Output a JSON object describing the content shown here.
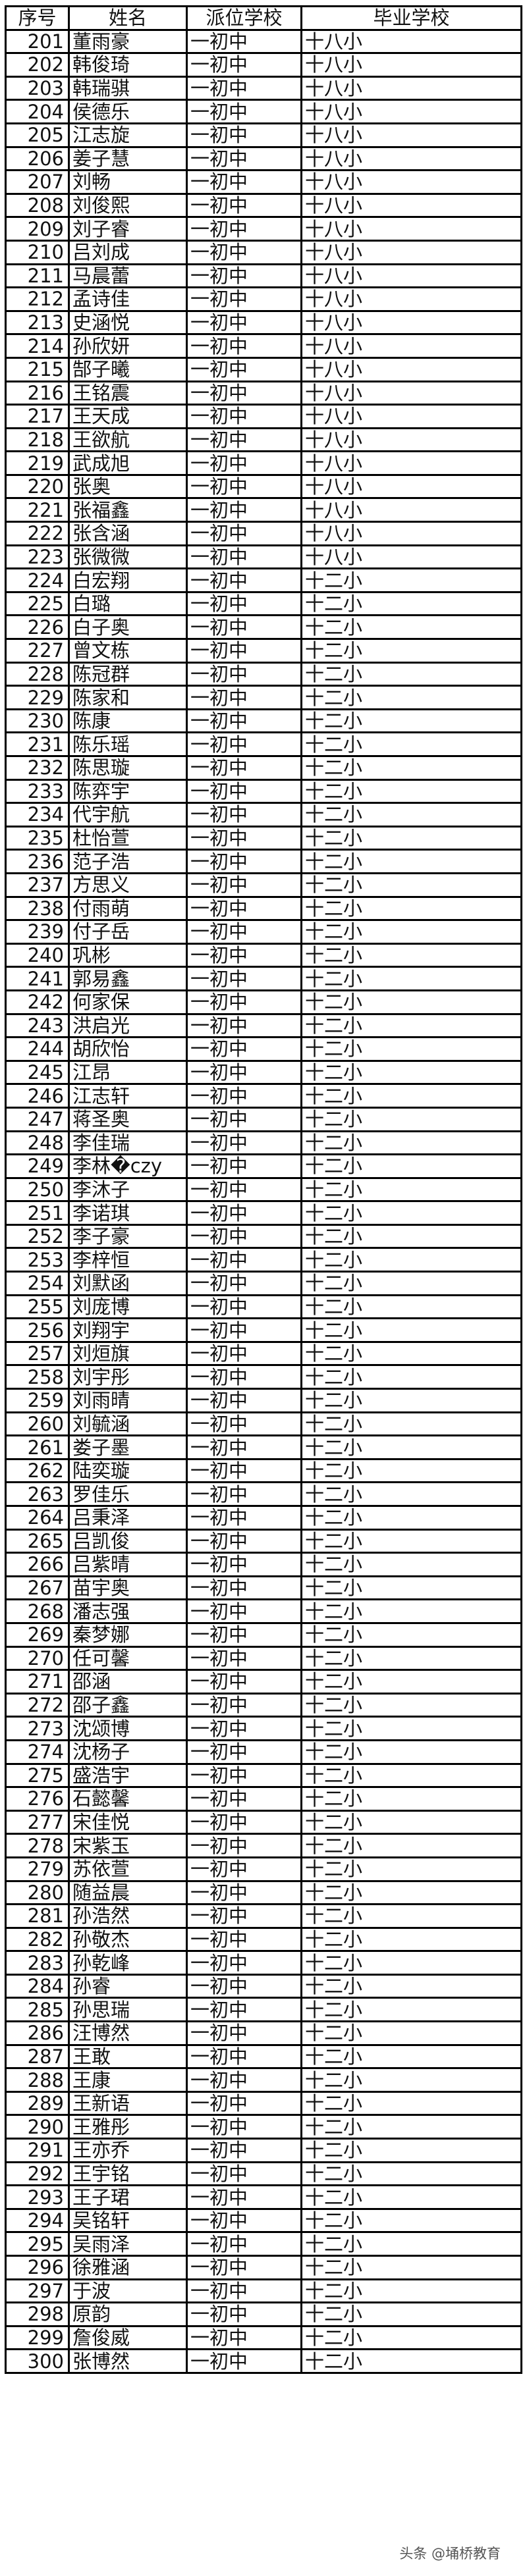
{
  "header": {
    "no": "序号",
    "name": "姓名",
    "assigned_school": "派位学校",
    "graduate_school": "毕业学校"
  },
  "rows": [
    [
      "201",
      "董雨豪",
      "一初中",
      "十八小"
    ],
    [
      "202",
      "韩俊琦",
      "一初中",
      "十八小"
    ],
    [
      "203",
      "韩瑞骐",
      "一初中",
      "十八小"
    ],
    [
      "204",
      "侯德乐",
      "一初中",
      "十八小"
    ],
    [
      "205",
      "江志旋",
      "一初中",
      "十八小"
    ],
    [
      "206",
      "姜子慧",
      "一初中",
      "十八小"
    ],
    [
      "207",
      "刘畅",
      "一初中",
      "十八小"
    ],
    [
      "208",
      "刘俊熙",
      "一初中",
      "十八小"
    ],
    [
      "209",
      "刘子睿",
      "一初中",
      "十八小"
    ],
    [
      "210",
      "吕刘成",
      "一初中",
      "十八小"
    ],
    [
      "211",
      "马晨蕾",
      "一初中",
      "十八小"
    ],
    [
      "212",
      "孟诗佳",
      "一初中",
      "十八小"
    ],
    [
      "213",
      "史涵悦",
      "一初中",
      "十八小"
    ],
    [
      "214",
      "孙欣妍",
      "一初中",
      "十八小"
    ],
    [
      "215",
      "郜子曦",
      "一初中",
      "十八小"
    ],
    [
      "216",
      "王铭震",
      "一初中",
      "十八小"
    ],
    [
      "217",
      "王天成",
      "一初中",
      "十八小"
    ],
    [
      "218",
      "王欲航",
      "一初中",
      "十八小"
    ],
    [
      "219",
      "武成旭",
      "一初中",
      "十八小"
    ],
    [
      "220",
      "张奥",
      "一初中",
      "十八小"
    ],
    [
      "221",
      "张福鑫",
      "一初中",
      "十八小"
    ],
    [
      "222",
      "张含涵",
      "一初中",
      "十八小"
    ],
    [
      "223",
      "张微微",
      "一初中",
      "十八小"
    ],
    [
      "224",
      "白宏翔",
      "一初中",
      "十二小"
    ],
    [
      "225",
      "白璐",
      "一初中",
      "十二小"
    ],
    [
      "226",
      "白子奥",
      "一初中",
      "十二小"
    ],
    [
      "227",
      "曾文栋",
      "一初中",
      "十二小"
    ],
    [
      "228",
      "陈冠群",
      "一初中",
      "十二小"
    ],
    [
      "229",
      "陈家和",
      "一初中",
      "十二小"
    ],
    [
      "230",
      "陈康",
      "一初中",
      "十二小"
    ],
    [
      "231",
      "陈乐瑶",
      "一初中",
      "十二小"
    ],
    [
      "232",
      "陈思璇",
      "一初中",
      "十二小"
    ],
    [
      "233",
      "陈弈宇",
      "一初中",
      "十二小"
    ],
    [
      "234",
      "代宇航",
      "一初中",
      "十二小"
    ],
    [
      "235",
      "杜怡萱",
      "一初中",
      "十二小"
    ],
    [
      "236",
      "范子浩",
      "一初中",
      "十二小"
    ],
    [
      "237",
      "方思义",
      "一初中",
      "十二小"
    ],
    [
      "238",
      "付雨萌",
      "一初中",
      "十二小"
    ],
    [
      "239",
      "付子岳",
      "一初中",
      "十二小"
    ],
    [
      "240",
      "巩彬",
      "一初中",
      "十二小"
    ],
    [
      "241",
      "郭易鑫",
      "一初中",
      "十二小"
    ],
    [
      "242",
      "何家保",
      "一初中",
      "十二小"
    ],
    [
      "243",
      "洪启光",
      "一初中",
      "十二小"
    ],
    [
      "244",
      "胡欣怡",
      "一初中",
      "十二小"
    ],
    [
      "245",
      "江昂",
      "一初中",
      "十二小"
    ],
    [
      "246",
      "江志轩",
      "一初中",
      "十二小"
    ],
    [
      "247",
      "蒋圣奥",
      "一初中",
      "十二小"
    ],
    [
      "248",
      "李佳瑞",
      "一初中",
      "十二小"
    ],
    [
      "249",
      "李林�czy",
      "一初中",
      "十二小"
    ],
    [
      "250",
      "李沐子",
      "一初中",
      "十二小"
    ],
    [
      "251",
      "李诺琪",
      "一初中",
      "十二小"
    ],
    [
      "252",
      "李子豪",
      "一初中",
      "十二小"
    ],
    [
      "253",
      "李梓恒",
      "一初中",
      "十二小"
    ],
    [
      "254",
      "刘默函",
      "一初中",
      "十二小"
    ],
    [
      "255",
      "刘庞博",
      "一初中",
      "十二小"
    ],
    [
      "256",
      "刘翔宇",
      "一初中",
      "十二小"
    ],
    [
      "257",
      "刘烜旗",
      "一初中",
      "十二小"
    ],
    [
      "258",
      "刘宇彤",
      "一初中",
      "十二小"
    ],
    [
      "259",
      "刘雨晴",
      "一初中",
      "十二小"
    ],
    [
      "260",
      "刘毓涵",
      "一初中",
      "十二小"
    ],
    [
      "261",
      "娄子墨",
      "一初中",
      "十二小"
    ],
    [
      "262",
      "陆奕璇",
      "一初中",
      "十二小"
    ],
    [
      "263",
      "罗佳乐",
      "一初中",
      "十二小"
    ],
    [
      "264",
      "吕秉泽",
      "一初中",
      "十二小"
    ],
    [
      "265",
      "吕凯俊",
      "一初中",
      "十二小"
    ],
    [
      "266",
      "吕紫晴",
      "一初中",
      "十二小"
    ],
    [
      "267",
      "苗宇奥",
      "一初中",
      "十二小"
    ],
    [
      "268",
      "潘志强",
      "一初中",
      "十二小"
    ],
    [
      "269",
      "秦梦娜",
      "一初中",
      "十二小"
    ],
    [
      "270",
      "任可馨",
      "一初中",
      "十二小"
    ],
    [
      "271",
      "邵涵",
      "一初中",
      "十二小"
    ],
    [
      "272",
      "邵子鑫",
      "一初中",
      "十二小"
    ],
    [
      "273",
      "沈颂博",
      "一初中",
      "十二小"
    ],
    [
      "274",
      "沈杨子",
      "一初中",
      "十二小"
    ],
    [
      "275",
      "盛浩宇",
      "一初中",
      "十二小"
    ],
    [
      "276",
      "石懿馨",
      "一初中",
      "十二小"
    ],
    [
      "277",
      "宋佳悦",
      "一初中",
      "十二小"
    ],
    [
      "278",
      "宋紫玉",
      "一初中",
      "十二小"
    ],
    [
      "279",
      "苏依萱",
      "一初中",
      "十二小"
    ],
    [
      "280",
      "随益晨",
      "一初中",
      "十二小"
    ],
    [
      "281",
      "孙浩然",
      "一初中",
      "十二小"
    ],
    [
      "282",
      "孙敬杰",
      "一初中",
      "十二小"
    ],
    [
      "283",
      "孙乾峰",
      "一初中",
      "十二小"
    ],
    [
      "284",
      "孙睿",
      "一初中",
      "十二小"
    ],
    [
      "285",
      "孙思瑞",
      "一初中",
      "十二小"
    ],
    [
      "286",
      "汪博然",
      "一初中",
      "十二小"
    ],
    [
      "287",
      "王敢",
      "一初中",
      "十二小"
    ],
    [
      "288",
      "王康",
      "一初中",
      "十二小"
    ],
    [
      "289",
      "王新语",
      "一初中",
      "十二小"
    ],
    [
      "290",
      "王雅彤",
      "一初中",
      "十二小"
    ],
    [
      "291",
      "王亦乔",
      "一初中",
      "十二小"
    ],
    [
      "292",
      "王宇铭",
      "一初中",
      "十二小"
    ],
    [
      "293",
      "王子珺",
      "一初中",
      "十二小"
    ],
    [
      "294",
      "吴铭轩",
      "一初中",
      "十二小"
    ],
    [
      "295",
      "吴雨泽",
      "一初中",
      "十二小"
    ],
    [
      "296",
      "徐雅涵",
      "一初中",
      "十二小"
    ],
    [
      "297",
      "于波",
      "一初中",
      "十二小"
    ],
    [
      "298",
      "原韵",
      "一初中",
      "十二小"
    ],
    [
      "299",
      "詹俊威",
      "一初中",
      "十二小"
    ],
    [
      "300",
      "张博然",
      "一初中",
      "十二小"
    ]
  ],
  "watermark": "头条 @埇桥教育"
}
